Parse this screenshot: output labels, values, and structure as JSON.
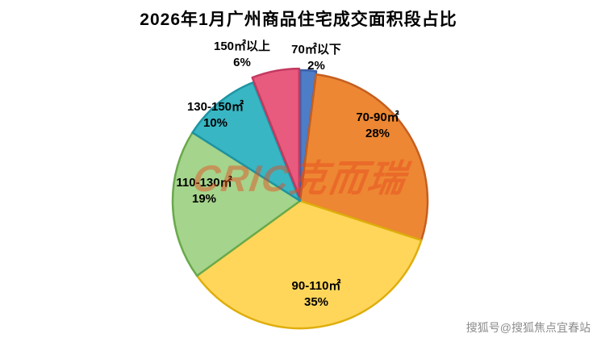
{
  "title": "2026年1月广州商品住宅成交面积段占比",
  "watermark": {
    "text": "CRIC克而瑞"
  },
  "credit": "搜狐号@搜狐焦点宜春站",
  "chart_data": {
    "type": "pie",
    "title": "2026年1月广州商品住宅成交面积段占比",
    "start_angle_deg": -90,
    "direction": "clockwise",
    "legend": "none",
    "slices": [
      {
        "label": "70㎡以下",
        "value": 2,
        "pct_label": "2%",
        "color": "#4e7dc8",
        "border": "#3a5fa8",
        "offset": 4
      },
      {
        "label": "70-90㎡",
        "value": 28,
        "pct_label": "28%",
        "color": "#ed8733",
        "border": "#c55f1f",
        "offset": 0
      },
      {
        "label": "90-110㎡",
        "value": 35,
        "pct_label": "35%",
        "color": "#ffd65a",
        "border": "#dfae0c",
        "offset": 0
      },
      {
        "label": "110-130㎡",
        "value": 19,
        "pct_label": "19%",
        "color": "#a5d48c",
        "border": "#69a94c",
        "offset": 0
      },
      {
        "label": "130-150㎡",
        "value": 10,
        "pct_label": "10%",
        "color": "#38b6c3",
        "border": "#1e93a2",
        "offset": 0
      },
      {
        "label": "150㎡以上",
        "value": 6,
        "pct_label": "6%",
        "color": "#e85a7e",
        "border": "#c23a60",
        "offset": 6
      }
    ]
  }
}
